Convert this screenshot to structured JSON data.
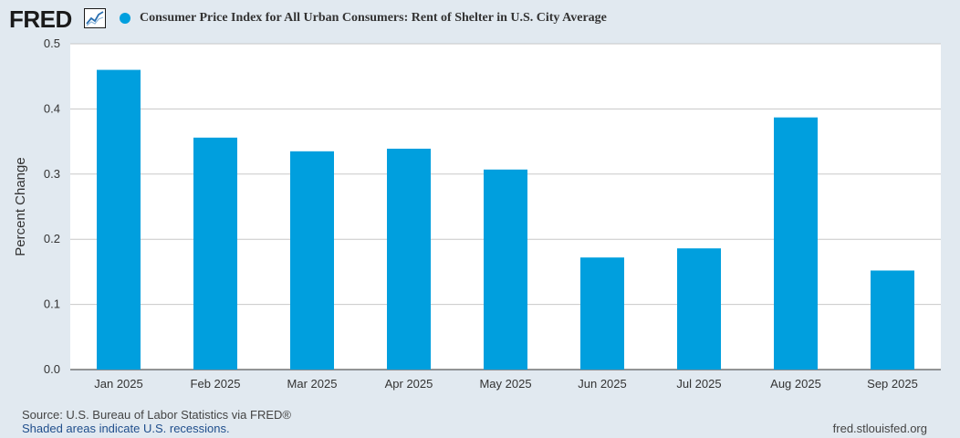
{
  "header": {
    "logo_text": "FRED",
    "logo_icon": "line-chart-icon"
  },
  "colors": {
    "bar": "#009fde",
    "background": "#e1e9f0",
    "plot_bg": "#ffffff",
    "grid": "#c8c8c8"
  },
  "chart_data": {
    "type": "bar",
    "title": "Consumer Price Index for All Urban Consumers: Rent of Shelter in U.S. City Average",
    "xlabel": "",
    "ylabel": "Percent Change",
    "categories": [
      "Jan 2025",
      "Feb 2025",
      "Mar 2025",
      "Apr 2025",
      "May 2025",
      "Jun 2025",
      "Jul 2025",
      "Aug 2025",
      "Sep 2025"
    ],
    "values": [
      0.46,
      0.356,
      0.335,
      0.339,
      0.307,
      0.172,
      0.186,
      0.387,
      0.152
    ],
    "ylim": [
      0,
      0.5
    ],
    "yticks": [
      "0.0",
      "0.1",
      "0.2",
      "0.3",
      "0.4",
      "0.5"
    ],
    "grid": true,
    "legend": "top-left"
  },
  "footer": {
    "source": "Source: U.S. Bureau of Labor Statistics via FRED®",
    "recessions": "Shaded areas indicate U.S. recessions.",
    "url": "fred.stlouisfed.org"
  }
}
